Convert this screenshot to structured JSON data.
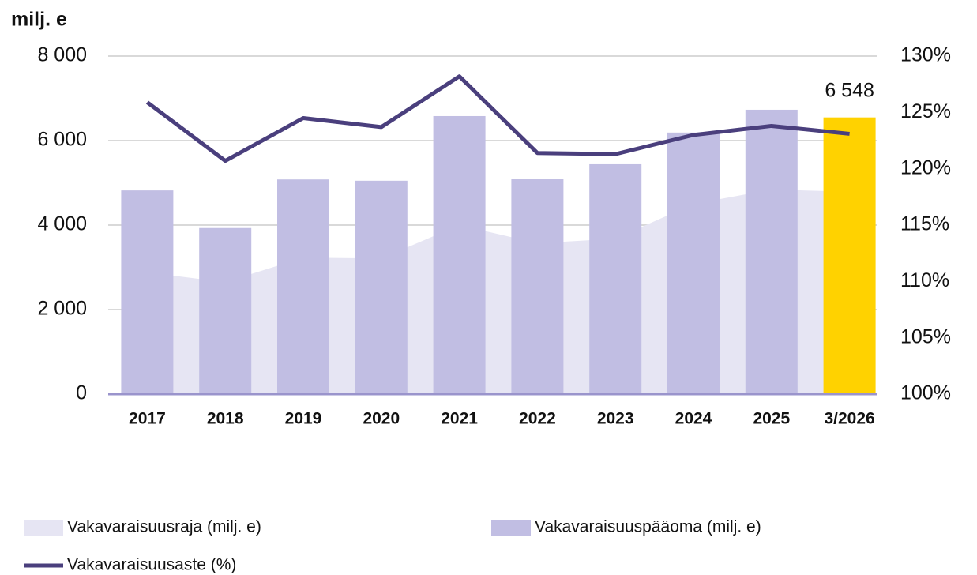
{
  "chart_data": {
    "type": "bar",
    "y_label": "milj. e",
    "categories": [
      "2017",
      "2018",
      "2019",
      "2020",
      "2021",
      "2022",
      "2023",
      "2024",
      "2025",
      "3/2026"
    ],
    "series": [
      {
        "name": "Vakavaraisuusraja (milj. e)",
        "type": "area",
        "color": "#e6e5f3",
        "values": [
          2880,
          2650,
          3230,
          3210,
          4000,
          3570,
          3680,
          4500,
          4840,
          4790
        ]
      },
      {
        "name": "Vakavaraisuuspääoma (milj. e)",
        "type": "bar",
        "color": "#c1bee3",
        "colors": [
          "#c1bee3",
          "#c1bee3",
          "#c1bee3",
          "#c1bee3",
          "#c1bee3",
          "#c1bee3",
          "#c1bee3",
          "#c1bee3",
          "#c1bee3",
          "#ffd200"
        ],
        "values": [
          4820,
          3930,
          5080,
          5050,
          6580,
          5100,
          5440,
          6190,
          6730,
          6548
        ],
        "value_labels": [
          null,
          null,
          null,
          null,
          null,
          null,
          null,
          null,
          null,
          "6 548"
        ]
      },
      {
        "name": "Vakavaraisuusaste (%)",
        "type": "line",
        "color": "#4a3f7d",
        "axis": "y2",
        "values": [
          125.9,
          120.7,
          124.5,
          123.7,
          128.2,
          121.4,
          121.3,
          123.0,
          123.8,
          123.1
        ]
      }
    ],
    "ylim": [
      0,
      8000
    ],
    "yticks": [
      0,
      {
        "value": 2000,
        "label": "2 000"
      },
      {
        "value": 4000,
        "label": "4 000"
      },
      {
        "value": 6000,
        "label": "6 000"
      },
      {
        "value": 8000,
        "label": "8 000"
      }
    ],
    "y2lim": [
      100,
      130
    ],
    "y2ticks": [
      {
        "value": 100,
        "label": "100%"
      },
      {
        "value": 105,
        "label": "105%"
      },
      {
        "value": 110,
        "label": "110%"
      },
      {
        "value": 115,
        "label": "115%"
      },
      {
        "value": 120,
        "label": "120%"
      },
      {
        "value": 125,
        "label": "125%"
      },
      {
        "value": 130,
        "label": "130%"
      }
    ],
    "grid": true,
    "legend": "bottom"
  }
}
